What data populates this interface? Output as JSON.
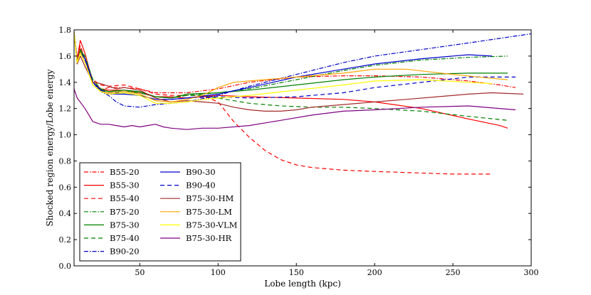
{
  "chart_data": {
    "type": "line",
    "title": "",
    "xlabel": "Lobe length (kpc)",
    "ylabel": "Shocked region energy/Lobe energy",
    "xlim": [
      8,
      300
    ],
    "ylim": [
      0.0,
      1.8
    ],
    "xticks": [
      50,
      100,
      150,
      200,
      250,
      300
    ],
    "yticks": [
      0.0,
      0.2,
      0.4,
      0.6,
      0.8,
      1.0,
      1.2,
      1.4,
      1.6,
      1.8
    ],
    "xtick_labels": [
      "50",
      "100",
      "150",
      "200",
      "250",
      "300"
    ],
    "ytick_labels": [
      "0.0",
      "0.2",
      "0.4",
      "0.6",
      "0.8",
      "1.0",
      "1.2",
      "1.4",
      "1.6",
      "1.8"
    ],
    "grid": false,
    "legend_position": "lower-left",
    "series": [
      {
        "name": "B55-20",
        "color": "#ff0000",
        "dash": "dashdot",
        "points": [
          [
            8,
            1.78
          ],
          [
            10,
            1.58
          ],
          [
            12,
            1.66
          ],
          [
            15,
            1.58
          ],
          [
            20,
            1.4
          ],
          [
            25,
            1.34
          ],
          [
            30,
            1.36
          ],
          [
            40,
            1.36
          ],
          [
            50,
            1.35
          ],
          [
            60,
            1.32
          ],
          [
            70,
            1.32
          ],
          [
            80,
            1.32
          ],
          [
            100,
            1.35
          ],
          [
            120,
            1.4
          ],
          [
            150,
            1.44
          ],
          [
            180,
            1.45
          ],
          [
            200,
            1.45
          ],
          [
            230,
            1.44
          ],
          [
            260,
            1.41
          ],
          [
            280,
            1.38
          ],
          [
            290,
            1.36
          ]
        ]
      },
      {
        "name": "B55-30",
        "color": "#ff0000",
        "dash": "solid",
        "points": [
          [
            8,
            1.75
          ],
          [
            10,
            1.58
          ],
          [
            12,
            1.72
          ],
          [
            15,
            1.62
          ],
          [
            20,
            1.4
          ],
          [
            25,
            1.35
          ],
          [
            30,
            1.34
          ],
          [
            40,
            1.34
          ],
          [
            50,
            1.32
          ],
          [
            60,
            1.29
          ],
          [
            70,
            1.29
          ],
          [
            80,
            1.28
          ],
          [
            100,
            1.3
          ],
          [
            120,
            1.29
          ],
          [
            150,
            1.28
          ],
          [
            180,
            1.27
          ],
          [
            200,
            1.25
          ],
          [
            230,
            1.2
          ],
          [
            260,
            1.12
          ],
          [
            280,
            1.07
          ],
          [
            285,
            1.05
          ]
        ]
      },
      {
        "name": "B55-40",
        "color": "#ff0000",
        "dash": "dashed",
        "points": [
          [
            8,
            1.78
          ],
          [
            10,
            1.58
          ],
          [
            12,
            1.68
          ],
          [
            15,
            1.57
          ],
          [
            20,
            1.42
          ],
          [
            25,
            1.38
          ],
          [
            30,
            1.37
          ],
          [
            40,
            1.38
          ],
          [
            50,
            1.35
          ],
          [
            60,
            1.31
          ],
          [
            70,
            1.3
          ],
          [
            80,
            1.3
          ],
          [
            90,
            1.3
          ],
          [
            100,
            1.25
          ],
          [
            110,
            1.1
          ],
          [
            120,
            0.98
          ],
          [
            130,
            0.88
          ],
          [
            140,
            0.81
          ],
          [
            150,
            0.77
          ],
          [
            160,
            0.75
          ],
          [
            180,
            0.73
          ],
          [
            200,
            0.72
          ],
          [
            250,
            0.7
          ],
          [
            275,
            0.7
          ]
        ]
      },
      {
        "name": "B75-20",
        "color": "#008000",
        "dash": "dashdot",
        "points": [
          [
            8,
            1.78
          ],
          [
            10,
            1.54
          ],
          [
            12,
            1.64
          ],
          [
            15,
            1.6
          ],
          [
            20,
            1.42
          ],
          [
            25,
            1.35
          ],
          [
            30,
            1.33
          ],
          [
            40,
            1.33
          ],
          [
            50,
            1.32
          ],
          [
            60,
            1.29
          ],
          [
            70,
            1.28
          ],
          [
            80,
            1.3
          ],
          [
            100,
            1.32
          ],
          [
            120,
            1.35
          ],
          [
            150,
            1.42
          ],
          [
            180,
            1.49
          ],
          [
            200,
            1.53
          ],
          [
            230,
            1.57
          ],
          [
            260,
            1.59
          ],
          [
            285,
            1.6
          ]
        ]
      },
      {
        "name": "B75-30",
        "color": "#008000",
        "dash": "solid",
        "points": [
          [
            8,
            1.78
          ],
          [
            10,
            1.55
          ],
          [
            12,
            1.65
          ],
          [
            15,
            1.58
          ],
          [
            20,
            1.4
          ],
          [
            25,
            1.34
          ],
          [
            30,
            1.33
          ],
          [
            40,
            1.34
          ],
          [
            50,
            1.33
          ],
          [
            60,
            1.29
          ],
          [
            70,
            1.28
          ],
          [
            80,
            1.31
          ],
          [
            100,
            1.32
          ],
          [
            120,
            1.34
          ],
          [
            150,
            1.38
          ],
          [
            180,
            1.42
          ],
          [
            200,
            1.44
          ],
          [
            230,
            1.46
          ],
          [
            260,
            1.47
          ],
          [
            285,
            1.47
          ]
        ]
      },
      {
        "name": "B75-40",
        "color": "#008000",
        "dash": "dashed",
        "points": [
          [
            8,
            1.78
          ],
          [
            10,
            1.55
          ],
          [
            12,
            1.64
          ],
          [
            15,
            1.58
          ],
          [
            20,
            1.4
          ],
          [
            25,
            1.35
          ],
          [
            30,
            1.33
          ],
          [
            40,
            1.34
          ],
          [
            50,
            1.32
          ],
          [
            60,
            1.29
          ],
          [
            70,
            1.28
          ],
          [
            80,
            1.3
          ],
          [
            90,
            1.3
          ],
          [
            100,
            1.28
          ],
          [
            120,
            1.24
          ],
          [
            140,
            1.22
          ],
          [
            160,
            1.21
          ],
          [
            180,
            1.21
          ],
          [
            200,
            1.2
          ],
          [
            230,
            1.18
          ],
          [
            260,
            1.14
          ],
          [
            285,
            1.11
          ]
        ]
      },
      {
        "name": "B90-20",
        "color": "#0000cc",
        "dash": "dashdot",
        "points": [
          [
            8,
            1.78
          ],
          [
            10,
            1.56
          ],
          [
            12,
            1.63
          ],
          [
            15,
            1.58
          ],
          [
            20,
            1.4
          ],
          [
            25,
            1.33
          ],
          [
            30,
            1.3
          ],
          [
            35,
            1.25
          ],
          [
            40,
            1.22
          ],
          [
            50,
            1.21
          ],
          [
            60,
            1.23
          ],
          [
            70,
            1.24
          ],
          [
            80,
            1.25
          ],
          [
            100,
            1.3
          ],
          [
            120,
            1.37
          ],
          [
            150,
            1.46
          ],
          [
            180,
            1.55
          ],
          [
            200,
            1.6
          ],
          [
            230,
            1.65
          ],
          [
            260,
            1.7
          ],
          [
            300,
            1.77
          ]
        ]
      },
      {
        "name": "B90-30",
        "color": "#0000cc",
        "dash": "solid",
        "points": [
          [
            8,
            1.78
          ],
          [
            10,
            1.57
          ],
          [
            12,
            1.63
          ],
          [
            15,
            1.58
          ],
          [
            20,
            1.4
          ],
          [
            25,
            1.34
          ],
          [
            30,
            1.31
          ],
          [
            40,
            1.31
          ],
          [
            50,
            1.3
          ],
          [
            60,
            1.27
          ],
          [
            70,
            1.27
          ],
          [
            80,
            1.28
          ],
          [
            100,
            1.31
          ],
          [
            120,
            1.36
          ],
          [
            150,
            1.44
          ],
          [
            180,
            1.5
          ],
          [
            200,
            1.54
          ],
          [
            230,
            1.58
          ],
          [
            260,
            1.61
          ],
          [
            275,
            1.6
          ]
        ]
      },
      {
        "name": "B90-40",
        "color": "#0000cc",
        "dash": "dashed",
        "points": [
          [
            8,
            1.78
          ],
          [
            10,
            1.57
          ],
          [
            12,
            1.62
          ],
          [
            15,
            1.57
          ],
          [
            20,
            1.4
          ],
          [
            25,
            1.34
          ],
          [
            30,
            1.32
          ],
          [
            40,
            1.32
          ],
          [
            50,
            1.3
          ],
          [
            60,
            1.27
          ],
          [
            70,
            1.27
          ],
          [
            80,
            1.28
          ],
          [
            100,
            1.29
          ],
          [
            120,
            1.28
          ],
          [
            150,
            1.29
          ],
          [
            180,
            1.32
          ],
          [
            200,
            1.36
          ],
          [
            230,
            1.4
          ],
          [
            260,
            1.44
          ],
          [
            290,
            1.44
          ]
        ]
      },
      {
        "name": "B75-30-HM",
        "color": "#a52a2a",
        "dash": "solid",
        "points": [
          [
            8,
            1.78
          ],
          [
            10,
            1.54
          ],
          [
            12,
            1.6
          ],
          [
            15,
            1.52
          ],
          [
            20,
            1.4
          ],
          [
            25,
            1.39
          ],
          [
            30,
            1.37
          ],
          [
            35,
            1.35
          ],
          [
            40,
            1.36
          ],
          [
            50,
            1.34
          ],
          [
            60,
            1.28
          ],
          [
            70,
            1.25
          ],
          [
            80,
            1.26
          ],
          [
            90,
            1.25
          ],
          [
            100,
            1.24
          ],
          [
            110,
            1.21
          ],
          [
            120,
            1.19
          ],
          [
            130,
            1.18
          ],
          [
            140,
            1.18
          ],
          [
            150,
            1.19
          ],
          [
            160,
            1.21
          ],
          [
            180,
            1.23
          ],
          [
            200,
            1.25
          ],
          [
            220,
            1.27
          ],
          [
            240,
            1.29
          ],
          [
            260,
            1.31
          ],
          [
            275,
            1.32
          ],
          [
            295,
            1.31
          ]
        ]
      },
      {
        "name": "B75-30-LM",
        "color": "#ffa500",
        "dash": "solid",
        "points": [
          [
            8,
            1.78
          ],
          [
            10,
            1.56
          ],
          [
            12,
            1.63
          ],
          [
            15,
            1.55
          ],
          [
            20,
            1.38
          ],
          [
            25,
            1.33
          ],
          [
            30,
            1.32
          ],
          [
            40,
            1.33
          ],
          [
            50,
            1.31
          ],
          [
            60,
            1.26
          ],
          [
            70,
            1.25
          ],
          [
            80,
            1.27
          ],
          [
            90,
            1.3
          ],
          [
            95,
            1.33
          ],
          [
            100,
            1.36
          ],
          [
            110,
            1.4
          ],
          [
            120,
            1.41
          ],
          [
            150,
            1.44
          ],
          [
            180,
            1.47
          ],
          [
            200,
            1.5
          ],
          [
            220,
            1.5
          ],
          [
            250,
            1.46
          ],
          [
            275,
            1.43
          ],
          [
            285,
            1.42
          ]
        ]
      },
      {
        "name": "B75-30-VLM",
        "color": "#ffff00",
        "dash": "solid",
        "points": [
          [
            8,
            1.78
          ],
          [
            10,
            1.55
          ],
          [
            12,
            1.62
          ],
          [
            15,
            1.55
          ],
          [
            20,
            1.38
          ],
          [
            25,
            1.33
          ],
          [
            30,
            1.31
          ],
          [
            40,
            1.32
          ],
          [
            50,
            1.3
          ],
          [
            60,
            1.24
          ],
          [
            70,
            1.24
          ],
          [
            80,
            1.25
          ],
          [
            90,
            1.27
          ],
          [
            100,
            1.28
          ],
          [
            120,
            1.3
          ],
          [
            150,
            1.34
          ],
          [
            180,
            1.38
          ],
          [
            200,
            1.41
          ],
          [
            230,
            1.42
          ],
          [
            260,
            1.4
          ],
          [
            275,
            1.39
          ]
        ]
      },
      {
        "name": "B75-30-HR",
        "color": "#800080",
        "dash": "solid",
        "points": [
          [
            8,
            1.35
          ],
          [
            10,
            1.28
          ],
          [
            15,
            1.2
          ],
          [
            20,
            1.1
          ],
          [
            25,
            1.08
          ],
          [
            30,
            1.08
          ],
          [
            35,
            1.07
          ],
          [
            40,
            1.06
          ],
          [
            45,
            1.07
          ],
          [
            50,
            1.06
          ],
          [
            55,
            1.07
          ],
          [
            60,
            1.08
          ],
          [
            65,
            1.06
          ],
          [
            70,
            1.05
          ],
          [
            80,
            1.04
          ],
          [
            90,
            1.05
          ],
          [
            100,
            1.05
          ],
          [
            120,
            1.07
          ],
          [
            140,
            1.11
          ],
          [
            160,
            1.15
          ],
          [
            180,
            1.18
          ],
          [
            200,
            1.19
          ],
          [
            230,
            1.21
          ],
          [
            260,
            1.22
          ],
          [
            290,
            1.19
          ]
        ]
      }
    ]
  }
}
